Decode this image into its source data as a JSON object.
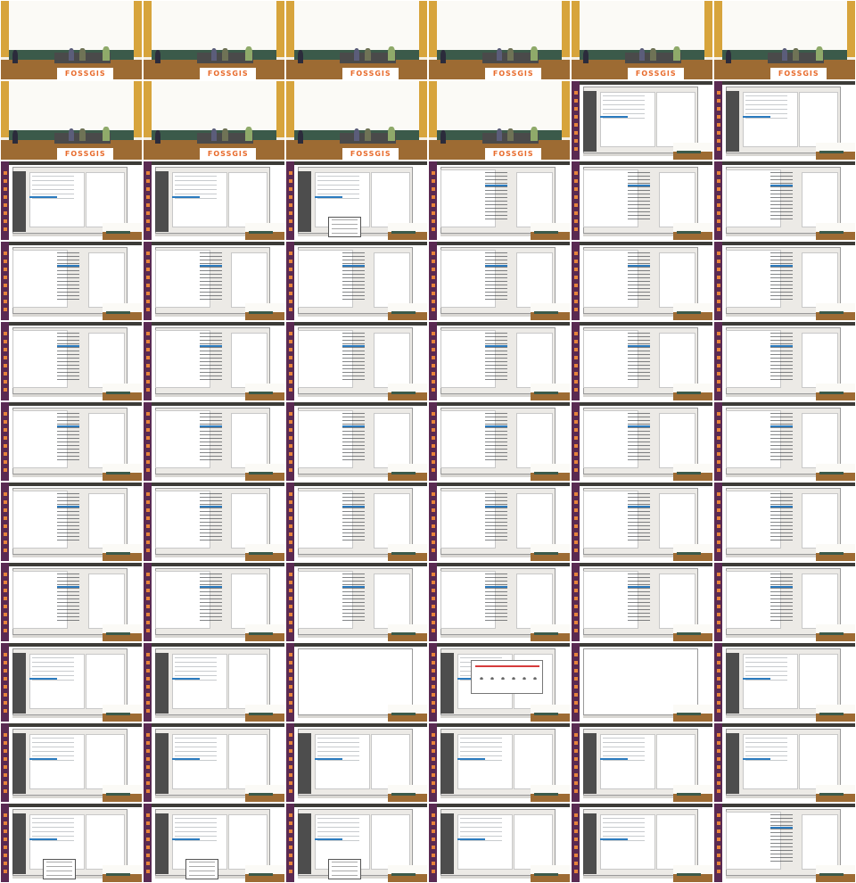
{
  "banner_text": "FOSSGIS",
  "colors": {
    "room_wall": "#fbfaf6",
    "room_pillar": "#d7a43c",
    "room_board": "#3b5a4a",
    "room_floor": "#9d6b33",
    "banner_text": "#e86b2c",
    "launcher": "#5a2a52",
    "launcher_icons": "#e7833b",
    "topbar": "#3c3b37",
    "window": "#eceae6",
    "selection": "#2b7bbf"
  },
  "grid": {
    "columns": 6,
    "rows": 11
  },
  "frames": [
    "room",
    "room",
    "room",
    "room",
    "room",
    "room",
    "room",
    "room",
    "room",
    "room",
    "desktop",
    "desktop",
    "desktop",
    "desktop",
    "desktop-menu",
    "list",
    "list",
    "list",
    "list",
    "list",
    "list",
    "list",
    "list",
    "list",
    "list",
    "list",
    "list",
    "list",
    "list",
    "list",
    "list",
    "list",
    "list",
    "list",
    "list",
    "list",
    "list",
    "list",
    "list",
    "list",
    "list",
    "list",
    "list",
    "list",
    "list",
    "list",
    "list",
    "list",
    "desktop",
    "desktop",
    "blank",
    "dialog",
    "blank",
    "desktop",
    "desktop",
    "desktop",
    "desktop",
    "desktop",
    "desktop",
    "desktop",
    "desktop-menu",
    "desktop-menu",
    "desktop-menu",
    "desktop",
    "desktop",
    "list"
  ]
}
